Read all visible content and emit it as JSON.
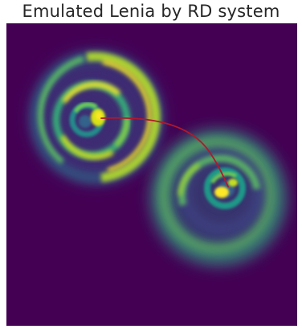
{
  "figure": {
    "title": "Emulated Lenia by RD system"
  },
  "image": {
    "content": "simulation-field",
    "colormap": "viridis",
    "background_color": "#440154",
    "colormap_stops": [
      "#440154",
      "#3b528b",
      "#21918c",
      "#5ec962",
      "#fde725"
    ],
    "trajectory_color": "#b2182b",
    "creatures": 2
  }
}
